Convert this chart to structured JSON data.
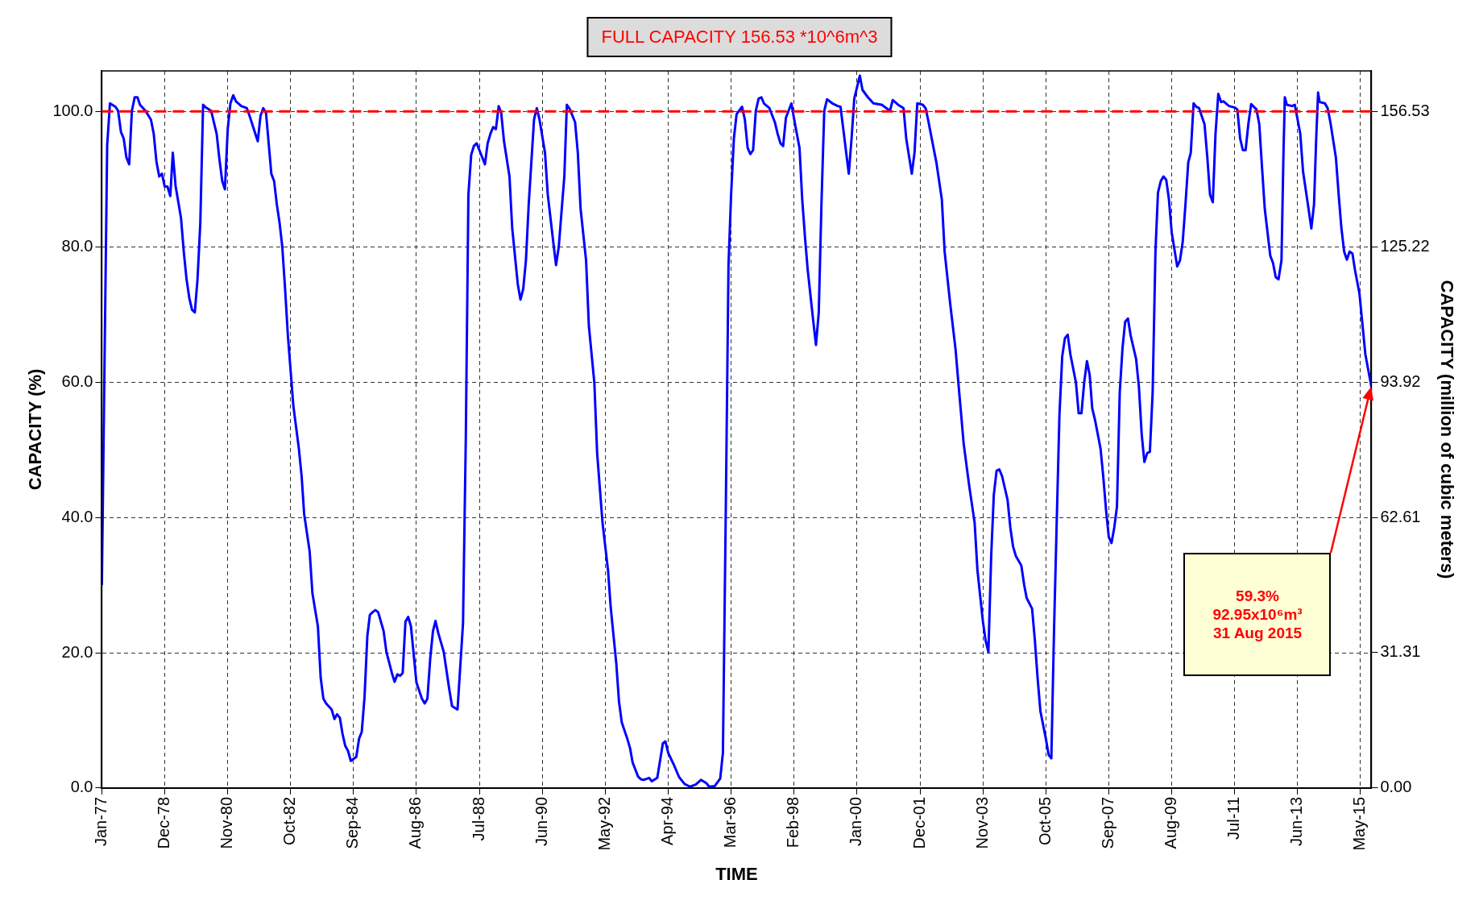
{
  "chart_data": {
    "type": "line",
    "title": "FULL CAPACITY 156.53 *10^6m^3",
    "xlabel": "TIME",
    "ylabel": "CAPACITY (%)",
    "y2label": "CAPACITY (million of cubic meters)",
    "xlim": [
      "1977-01-01",
      "2015-08-31"
    ],
    "xticks": [
      {
        "value": "1977-01",
        "label": "Jan-77"
      },
      {
        "value": "1978-12",
        "label": "Dec-78"
      },
      {
        "value": "1980-11",
        "label": "Nov-80"
      },
      {
        "value": "1982-10",
        "label": "Oct-82"
      },
      {
        "value": "1984-09",
        "label": "Sep-84"
      },
      {
        "value": "1986-08",
        "label": "Aug-86"
      },
      {
        "value": "1988-07",
        "label": "Jul-88"
      },
      {
        "value": "1990-06",
        "label": "Jun-90"
      },
      {
        "value": "1992-05",
        "label": "May-92"
      },
      {
        "value": "1994-04",
        "label": "Apr-94"
      },
      {
        "value": "1996-03",
        "label": "Mar-96"
      },
      {
        "value": "1998-02",
        "label": "Feb-98"
      },
      {
        "value": "2000-01",
        "label": "Jan-00"
      },
      {
        "value": "2001-12",
        "label": "Dec-01"
      },
      {
        "value": "2003-11",
        "label": "Nov-03"
      },
      {
        "value": "2005-10",
        "label": "Oct-05"
      },
      {
        "value": "2007-09",
        "label": "Sep-07"
      },
      {
        "value": "2009-08",
        "label": "Aug-09"
      },
      {
        "value": "2011-07",
        "label": "Jul-11"
      },
      {
        "value": "2013-06",
        "label": "Jun-13"
      },
      {
        "value": "2015-05",
        "label": "May-15"
      }
    ],
    "ylim": [
      0,
      106
    ],
    "yticks": [
      {
        "value": 0,
        "label": "0.0"
      },
      {
        "value": 20,
        "label": "20.0"
      },
      {
        "value": 40,
        "label": "40.0"
      },
      {
        "value": 60,
        "label": "60.0"
      },
      {
        "value": 80,
        "label": "80.0"
      },
      {
        "value": 100,
        "label": "100.0"
      }
    ],
    "y2lim": [
      0,
      165.92
    ],
    "y2ticks": [
      {
        "value": 0,
        "label": "0.00"
      },
      31.31,
      62.61,
      93.92,
      125.22,
      156.53
    ],
    "grid": true,
    "ref_lines": [
      {
        "axis": "y",
        "value": 100,
        "color": "#ff0000",
        "line_style": "dashed"
      }
    ],
    "annotations": [
      "59.3%\n92.95x10⁶m³\n31 Aug 2015"
    ],
    "series": [
      {
        "color": "#0000ff",
        "x": [
          "1977-01",
          "1977-03",
          "1977-04",
          "1977-06",
          "1977-07",
          "1977-08",
          "1977-09",
          "1977-10",
          "1977-11",
          "1977-12",
          "1978-01",
          "1978-02",
          "1978-03",
          "1978-05",
          "1978-07",
          "1978-08",
          "1978-09",
          "1978-10",
          "1978-11",
          "1978-12",
          "1979-01",
          "1979-02",
          "1979-03",
          "1979-04",
          "1979-06",
          "1979-07",
          "1979-08",
          "1979-09",
          "1979-10",
          "1979-11",
          "1979-12",
          "1980-01",
          "1980-02",
          "1980-03",
          "1980-05",
          "1980-07",
          "1980-08",
          "1980-09",
          "1980-10",
          "1980-11",
          "1980-12",
          "1981-01",
          "1981-02",
          "1981-04",
          "1981-06",
          "1981-07",
          "1981-08",
          "1981-10",
          "1981-11",
          "1981-12",
          "1982-01",
          "1982-03",
          "1982-04",
          "1982-05",
          "1982-06",
          "1982-07",
          "1982-08",
          "1982-09",
          "1982-11",
          "1983-01",
          "1983-02",
          "1983-03",
          "1983-05",
          "1983-06",
          "1983-08",
          "1983-09",
          "1983-10",
          "1983-11",
          "1984-01",
          "1984-02",
          "1984-03",
          "1984-04",
          "1984-05",
          "1984-06",
          "1984-07",
          "1984-08",
          "1984-10",
          "1984-11",
          "1984-12",
          "1985-01",
          "1985-02",
          "1985-03",
          "1985-04",
          "1985-05",
          "1985-06",
          "1985-08",
          "1985-09",
          "1985-11",
          "1985-12",
          "1986-01",
          "1986-02",
          "1986-03",
          "1986-04",
          "1986-05",
          "1986-06",
          "1986-07",
          "1986-08",
          "1986-10",
          "1986-11",
          "1986-12",
          "1987-01",
          "1987-02",
          "1987-03",
          "1987-04",
          "1987-06",
          "1987-08",
          "1987-09",
          "1987-11",
          "1988-01",
          "1988-02",
          "1988-03",
          "1988-04",
          "1988-05",
          "1988-06",
          "1988-07",
          "1988-09",
          "1988-10",
          "1988-11",
          "1988-12",
          "1989-01",
          "1989-02",
          "1989-03",
          "1989-04",
          "1989-06",
          "1989-07",
          "1989-09",
          "1989-10",
          "1989-11",
          "1989-12",
          "1990-01",
          "1990-03",
          "1990-04",
          "1990-05",
          "1990-07",
          "1990-08",
          "1990-10",
          "1990-11",
          "1990-12",
          "1991-02",
          "1991-03",
          "1991-04",
          "1991-06",
          "1991-07",
          "1991-08",
          "1991-10",
          "1991-11",
          "1992-01",
          "1992-02",
          "1992-04",
          "1992-06",
          "1992-07",
          "1992-09",
          "1992-10",
          "1992-11",
          "1993-01",
          "1993-02",
          "1993-03",
          "1993-05",
          "1993-06",
          "1993-07",
          "1993-09",
          "1993-10",
          "1993-12",
          "1994-02",
          "1994-03",
          "1994-04",
          "1994-06",
          "1994-08",
          "1994-10",
          "1994-12",
          "1995-02",
          "1995-04",
          "1995-06",
          "1995-07",
          "1995-09",
          "1995-11",
          "1995-12",
          "1996-01",
          "1996-02",
          "1996-03",
          "1996-04",
          "1996-05",
          "1996-07",
          "1996-08",
          "1996-09",
          "1996-10",
          "1996-11",
          "1996-12",
          "1997-01",
          "1997-02",
          "1997-03",
          "1997-05",
          "1997-07",
          "1997-08",
          "1997-09",
          "1997-10",
          "1997-11",
          "1998-01",
          "1998-02",
          "1998-04",
          "1998-05",
          "1998-06",
          "1998-07",
          "1998-09",
          "1998-10",
          "1998-11",
          "1998-12",
          "1999-01",
          "1999-02",
          "1999-04",
          "1999-06",
          "1999-07",
          "1999-08",
          "1999-10",
          "1999-11",
          "1999-12",
          "2000-02",
          "2000-03",
          "2000-05",
          "2000-07",
          "2000-10",
          "2000-11",
          "2001-01",
          "2001-02",
          "2001-04",
          "2001-06",
          "2001-07",
          "2001-09",
          "2001-10",
          "2001-11",
          "2002-01",
          "2002-02",
          "2002-03",
          "2002-05",
          "2002-06",
          "2002-08",
          "2002-09",
          "2002-11",
          "2003-01",
          "2003-02",
          "2003-04",
          "2003-06",
          "2003-08",
          "2003-09",
          "2003-11",
          "2003-12",
          "2004-01",
          "2004-02",
          "2004-03",
          "2004-04",
          "2004-05",
          "2004-06",
          "2004-08",
          "2004-09",
          "2004-10",
          "2004-11",
          "2005-01",
          "2005-02",
          "2005-03",
          "2005-05",
          "2005-06",
          "2005-07",
          "2005-08",
          "2005-10",
          "2005-11",
          "2005-12",
          "2006-01",
          "2006-02",
          "2006-03",
          "2006-04",
          "2006-05",
          "2006-06",
          "2006-07",
          "2006-09",
          "2006-10",
          "2006-11",
          "2006-12",
          "2007-01",
          "2007-02",
          "2007-03",
          "2007-04",
          "2007-06",
          "2007-07",
          "2007-08",
          "2007-09",
          "2007-10",
          "2007-11",
          "2007-12",
          "2008-01",
          "2008-02",
          "2008-03",
          "2008-04",
          "2008-05",
          "2008-07",
          "2008-08",
          "2008-09",
          "2008-10",
          "2008-11",
          "2008-12",
          "2009-01",
          "2009-02",
          "2009-03",
          "2009-04",
          "2009-05",
          "2009-06",
          "2009-07",
          "2009-08",
          "2009-10",
          "2009-11",
          "2009-12",
          "2010-01",
          "2010-02",
          "2010-03",
          "2010-04",
          "2010-05",
          "2010-06",
          "2010-08",
          "2010-09",
          "2010-10",
          "2010-11",
          "2010-12",
          "2011-01",
          "2011-02",
          "2011-03",
          "2011-05",
          "2011-07",
          "2011-08",
          "2011-09",
          "2011-10",
          "2011-11",
          "2011-12",
          "2012-01",
          "2012-03",
          "2012-04",
          "2012-05",
          "2012-06",
          "2012-08",
          "2012-09",
          "2012-10",
          "2012-11",
          "2012-12-04",
          "2012-12-25",
          "2013-01-10",
          "2013-02",
          "2013-04",
          "2013-05",
          "2013-07",
          "2013-08",
          "2013-10",
          "2013-11",
          "2013-12",
          "2013-12-25",
          "2014-01-15",
          "2014-02",
          "2014-04",
          "2014-05",
          "2014-06",
          "2014-08",
          "2014-09",
          "2014-10",
          "2014-11",
          "2014-12",
          "2015-01",
          "2015-02",
          "2015-03",
          "2015-04-20",
          "2015-05-20",
          "2015-06-25",
          "2015-08-31"
        ],
        "values": [
          30,
          95,
          101.2,
          100.7,
          100.1,
          97,
          96,
          93.2,
          92.2,
          100.1,
          102.1,
          102.1,
          101,
          100.1,
          98.8,
          96.7,
          92.5,
          90.4,
          90.8,
          88.9,
          88.9,
          87.5,
          93.9,
          89,
          84.2,
          79.3,
          75.2,
          72.4,
          70.7,
          70.3,
          75.2,
          83.5,
          101,
          100.6,
          100.1,
          96.7,
          92.9,
          89.7,
          88.5,
          97.4,
          101.2,
          102.4,
          101.5,
          100.8,
          100.5,
          99.4,
          98.1,
          95.6,
          99.4,
          100.5,
          99.8,
          90.8,
          89.7,
          86.3,
          83.5,
          80,
          73.8,
          66.9,
          56.5,
          50.2,
          46.1,
          40.5,
          35,
          28.8,
          23.9,
          16.3,
          13.2,
          12.5,
          11.6,
          10.2,
          10.9,
          10.4,
          8,
          6.2,
          5.5,
          4,
          4.6,
          7.3,
          8.3,
          13.5,
          22.5,
          25.6,
          26,
          26.3,
          26,
          23.2,
          20.1,
          17,
          15.7,
          16.8,
          16.6,
          17,
          24.6,
          25.3,
          23.9,
          19.8,
          15.6,
          13.2,
          12.5,
          13.2,
          19.1,
          23.2,
          24.7,
          22.9,
          20.1,
          14.6,
          12.1,
          11.6,
          24.3,
          51.6,
          87.7,
          93.6,
          94.9,
          95.3,
          94.3,
          92.2,
          95.3,
          96.7,
          97.7,
          97.4,
          100.8,
          99.8,
          95.6,
          90.4,
          82.8,
          74.5,
          72.2,
          73.8,
          78,
          86.3,
          98.8,
          100.5,
          98.8,
          93.9,
          87.7,
          80.7,
          77.3,
          80,
          90.4,
          101,
          100.4,
          98.4,
          93.9,
          85.6,
          78,
          68.3,
          59.9,
          49.5,
          39.2,
          32.2,
          26.7,
          18.4,
          12.8,
          9.7,
          7.3,
          5.9,
          3.8,
          1.7,
          1.3,
          1.2,
          1.5,
          1,
          1.5,
          6.6,
          6.9,
          5.2,
          3.5,
          1.6,
          0.6,
          0.2,
          0.5,
          1.2,
          0.7,
          0.2,
          0.3,
          1.4,
          5.2,
          40,
          77.3,
          87.7,
          96,
          99.6,
          100.7,
          98.8,
          94.6,
          93.7,
          94.3,
          100.1,
          101.9,
          102.1,
          101.2,
          100.5,
          98.4,
          96.7,
          95.3,
          94.9,
          99.1,
          101.2,
          98.8,
          94.6,
          87,
          81.4,
          76.6,
          69,
          65.5,
          70.3,
          86.3,
          100.1,
          101.8,
          101.2,
          100.8,
          100.7,
          97.4,
          90.8,
          96,
          101.9,
          105.3,
          103.2,
          102.1,
          101.2,
          101,
          100.7,
          100.1,
          101.7,
          101,
          100.5,
          96,
          90.8,
          93.9,
          101.2,
          101,
          100.5,
          98.8,
          94.6,
          92.5,
          87,
          79.3,
          71.7,
          64.8,
          59.9,
          50.9,
          44.7,
          39.2,
          32.2,
          24.6,
          21.8,
          20.1,
          34.3,
          43.3,
          46.9,
          47.1,
          46.1,
          42.6,
          38.5,
          35.7,
          34.3,
          32.9,
          30.1,
          28.1,
          26.5,
          21.8,
          16.3,
          11.4,
          7.3,
          4.9,
          4.4,
          23.9,
          40.5,
          55.1,
          63.8,
          66.5,
          67,
          64.1,
          59.9,
          55.4,
          55.4,
          59.9,
          63.1,
          61,
          56.1,
          54.4,
          50.2,
          46.1,
          41.2,
          37.1,
          36.2,
          38.5,
          41.6,
          58.5,
          65.1,
          68.9,
          69.4,
          66.9,
          63.4,
          59.3,
          52.3,
          48.2,
          49.5,
          49.7,
          58.5,
          79.3,
          88,
          89.7,
          90.4,
          89.9,
          87,
          82.1,
          77.1,
          78,
          80.7,
          86.3,
          92.5,
          93.9,
          101.2,
          100.7,
          100.5,
          98.1,
          93.2,
          87.7,
          86.6,
          96.7,
          102.6,
          101.4,
          101.5,
          100.8,
          100.6,
          100.3,
          96,
          94.3,
          94.3,
          98.1,
          101.1,
          100.3,
          98.1,
          91.8,
          85.6,
          78.7,
          77.6,
          75.5,
          75.2,
          78,
          93.2,
          102.1,
          101,
          100.8,
          101,
          96.7,
          91.1,
          85.6,
          82.7,
          86.3,
          96,
          102.8,
          101.4,
          101.2,
          100.5,
          98.4,
          93.2,
          87.7,
          82.8,
          79.3,
          78.1,
          79.3,
          79,
          76.6,
          73.1,
          69,
          64.1,
          59.3
        ]
      }
    ]
  }
}
